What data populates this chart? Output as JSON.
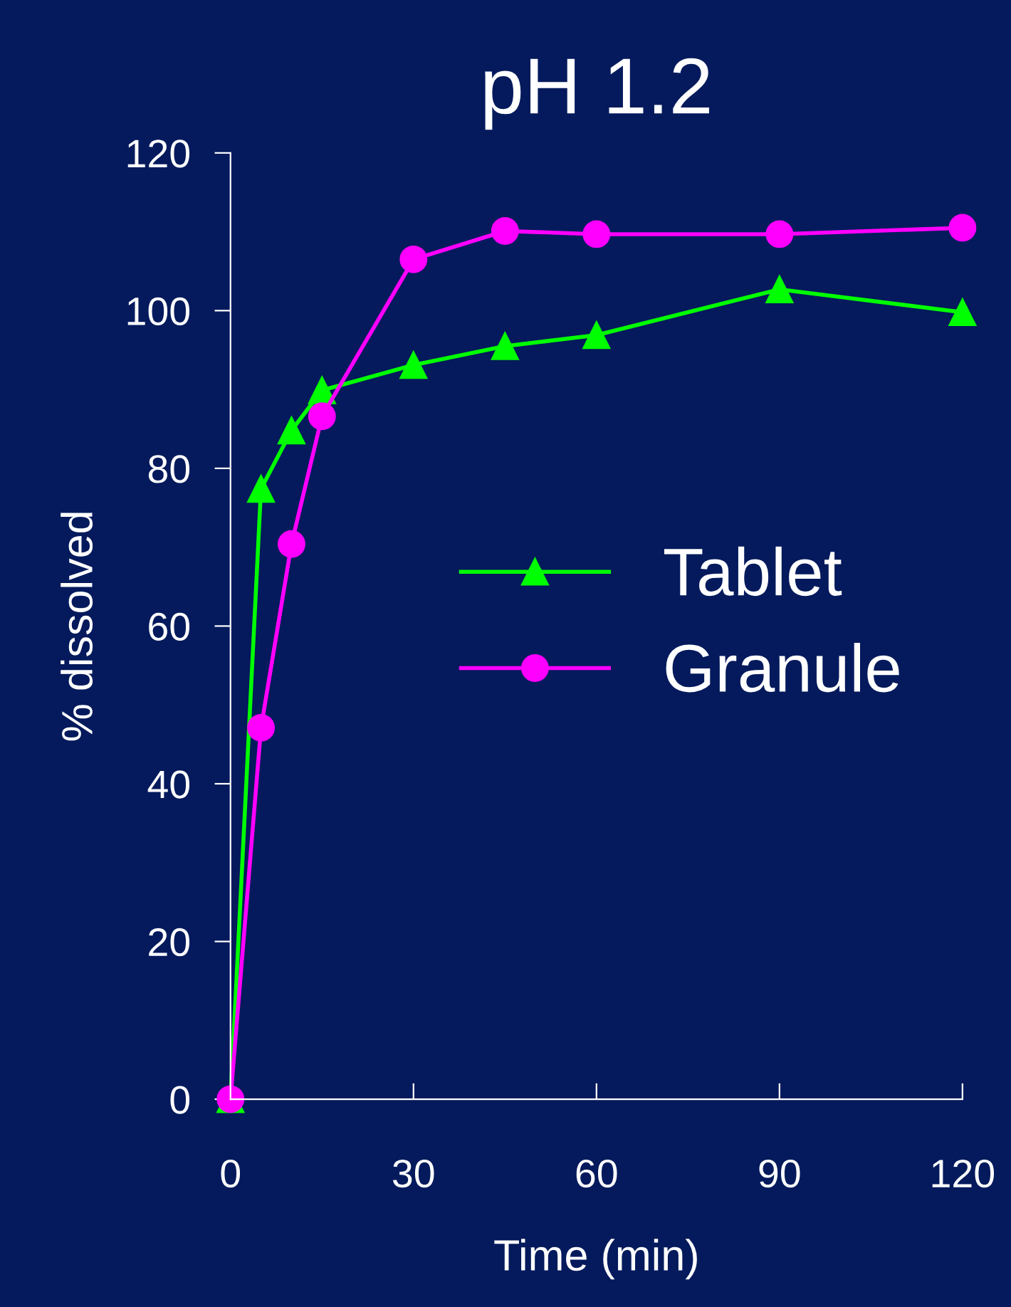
{
  "chart_data": {
    "type": "line",
    "title": "pH 1.2",
    "xlabel": "Time (min)",
    "ylabel": "% dissolved",
    "x": [
      0,
      5,
      10,
      15,
      30,
      45,
      60,
      90,
      120
    ],
    "series": [
      {
        "name": "Tablet",
        "color": "#00ff00",
        "marker": "triangle",
        "values": [
          0,
          77.4,
          84.8,
          89.9,
          93.1,
          95.5,
          96.9,
          102.7,
          99.8
        ]
      },
      {
        "name": "Granule",
        "color": "#ff00ff",
        "marker": "circle",
        "values": [
          0,
          47.1,
          70.4,
          86.6,
          106.5,
          110.1,
          109.7,
          109.7,
          110.5
        ]
      }
    ],
    "xlim": [
      0,
      120
    ],
    "xticks": [
      0,
      30,
      60,
      90,
      120
    ],
    "ylim": [
      0,
      120
    ],
    "yticks": [
      0,
      20,
      40,
      60,
      80,
      100,
      120
    ],
    "grid": false,
    "legend": "center right",
    "line_style": "solid"
  }
}
